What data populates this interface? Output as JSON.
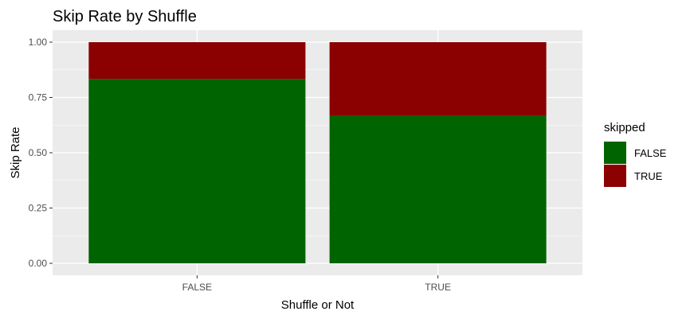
{
  "chart_data": {
    "type": "bar",
    "stacked": true,
    "title": "Skip Rate by Shuffle",
    "xlabel": "Shuffle or Not",
    "ylabel": "Skip Rate",
    "categories": [
      "FALSE",
      "TRUE"
    ],
    "series": [
      {
        "name": "FALSE",
        "values": [
          0.834,
          0.667
        ],
        "color": "#006400"
      },
      {
        "name": "TRUE",
        "values": [
          0.166,
          0.333
        ],
        "color": "#8b0000"
      }
    ],
    "ylim": [
      0,
      1
    ],
    "yticks": [
      0,
      0.25,
      0.5,
      0.75,
      1
    ],
    "ytick_labels": [
      "0.00",
      "0.25",
      "0.50",
      "0.75",
      "1.00"
    ],
    "grid": true,
    "legend": {
      "title": "skipped",
      "position": "right"
    },
    "panel_background": "#ebebeb"
  }
}
